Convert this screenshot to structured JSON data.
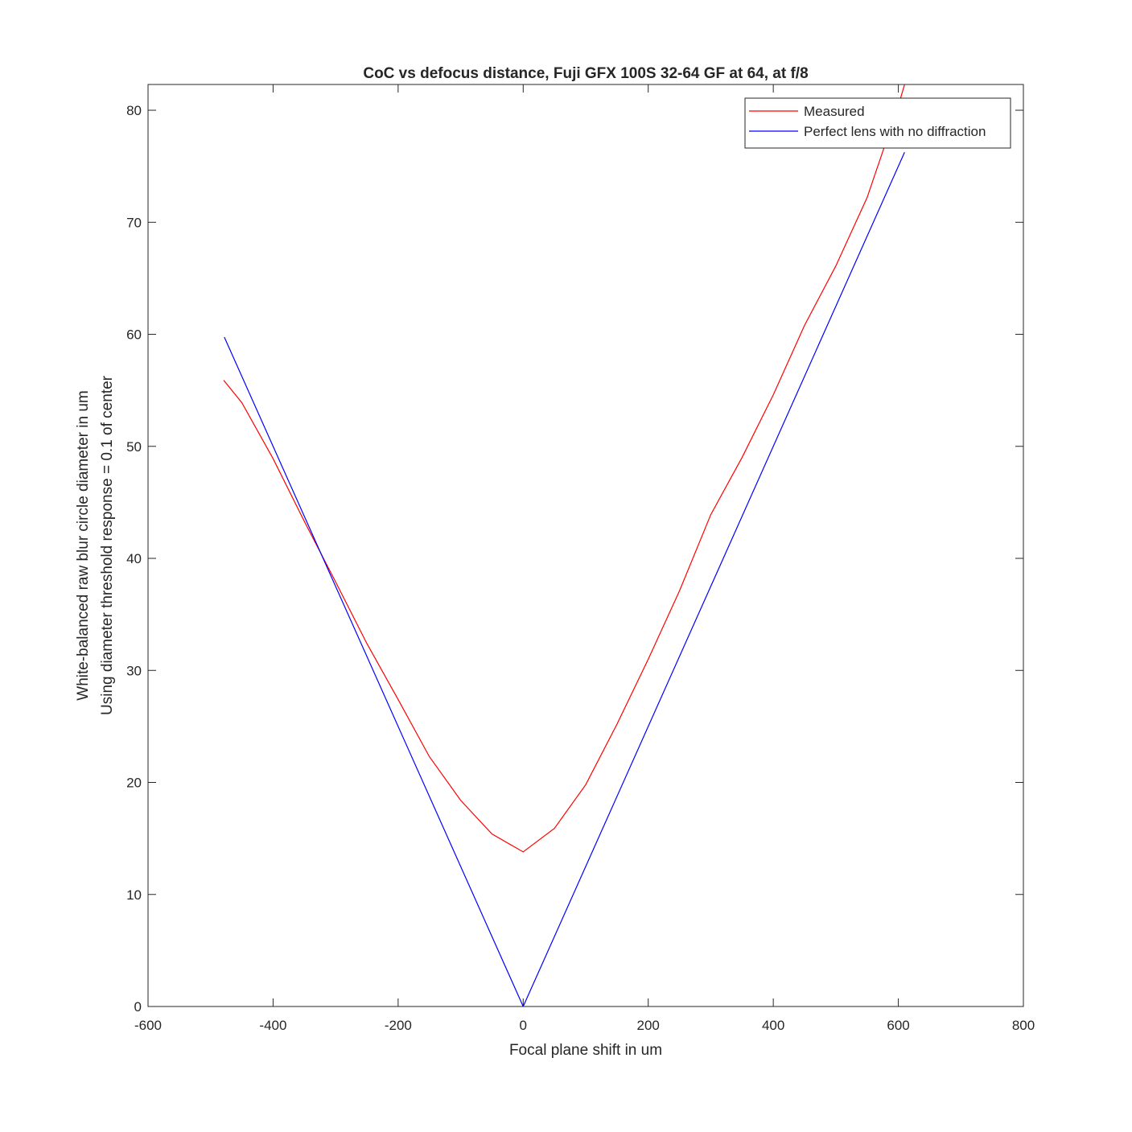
{
  "chart_data": {
    "type": "line",
    "title": "CoC vs defocus distance, Fuji GFX 100S 32-64 GF at 64, at f/8",
    "xlabel": "Focal plane shift in um",
    "ylabel": [
      "White-balanced raw blur circle diameter in um",
      "Using diameter threshold response = 0.1 of center"
    ],
    "xlim": [
      -600,
      800
    ],
    "xticks": [
      -600,
      -400,
      -200,
      0,
      200,
      400,
      600,
      800
    ],
    "ylim": [
      0,
      82.3
    ],
    "yticks": [
      0,
      10,
      20,
      30,
      40,
      50,
      60,
      70,
      80
    ],
    "legend": "top-right",
    "series": [
      {
        "name": "Measured",
        "color": "#ff0000",
        "x": [
          -479,
          -450,
          -400,
          -350,
          -300,
          -250,
          -200,
          -150,
          -100,
          -50,
          0,
          50,
          100,
          150,
          200,
          250,
          300,
          350,
          400,
          450,
          500,
          550,
          600,
          610
        ],
        "values": [
          55.9,
          53.9,
          48.9,
          43.3,
          37.9,
          32.4,
          27.4,
          22.3,
          18.4,
          15.4,
          13.8,
          15.9,
          19.8,
          25.2,
          31.0,
          37.1,
          43.9,
          49.0,
          54.6,
          60.8,
          66.1,
          72.2,
          80.4,
          82.3
        ]
      },
      {
        "name": "Perfect lens with no diffraction",
        "color": "#0000ff",
        "x": [
          -478,
          0,
          610
        ],
        "values": [
          59.75,
          0,
          76.25
        ]
      }
    ]
  }
}
